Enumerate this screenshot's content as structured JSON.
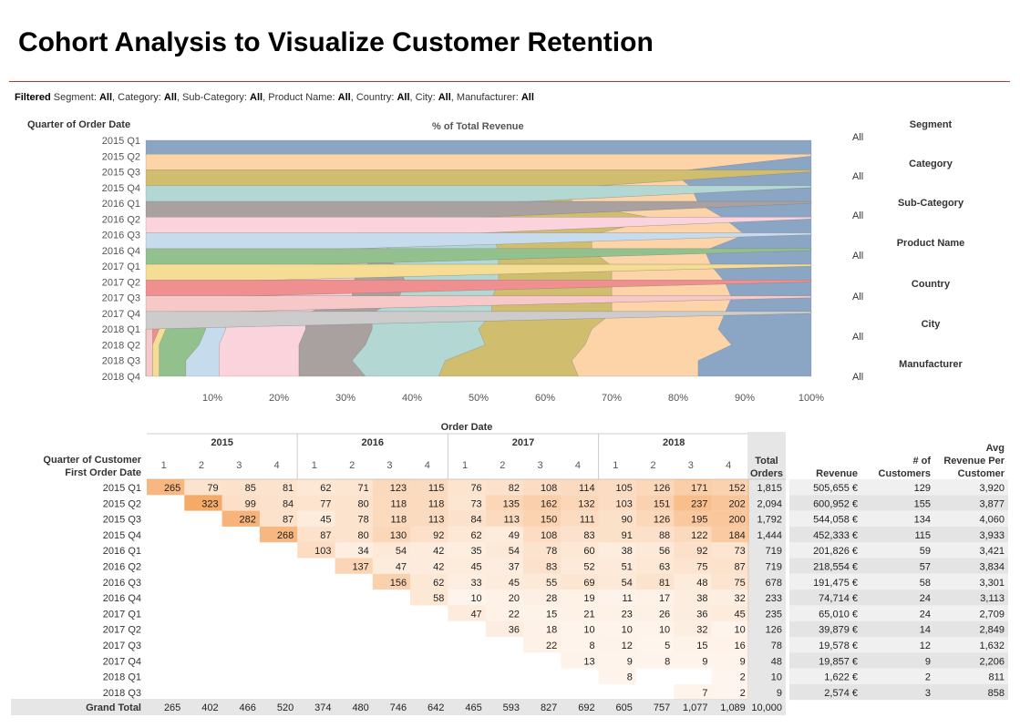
{
  "title": "Cohort Analysis to Visualize Customer Retention",
  "filters": {
    "label": "Filtered",
    "items": [
      {
        "name": "Segment:",
        "value": "All",
        "sep": ","
      },
      {
        "name": "Category:",
        "value": "All",
        "sep": ","
      },
      {
        "name": "Sub-Category:",
        "value": "All",
        "sep": ","
      },
      {
        "name": "Product Name:",
        "value": "All",
        "sep": ","
      },
      {
        "name": "Country:",
        "value": "All",
        "sep": ","
      },
      {
        "name": "City:",
        "value": "All",
        "sep": ","
      },
      {
        "name": "Manufacturer:",
        "value": "All",
        "sep": ""
      }
    ]
  },
  "side_filters": [
    {
      "label": "Segment",
      "value": "All"
    },
    {
      "label": "Category",
      "value": "All"
    },
    {
      "label": "Sub-Category",
      "value": "All"
    },
    {
      "label": "Product Name",
      "value": "All"
    },
    {
      "label": "Country",
      "value": "All"
    },
    {
      "label": "City",
      "value": "All"
    },
    {
      "label": "Manufacturer",
      "value": "All"
    }
  ],
  "colors": {
    "title_rule": "#c9302c",
    "cohorts": [
      "#8ba6c4",
      "#fdd4a8",
      "#d1bd6e",
      "#b3d7d3",
      "#a9a0a0",
      "#fbd3dd",
      "#c6dcec",
      "#93c18e",
      "#f6dd94",
      "#f08f8f",
      "#f7c8c8",
      "#cccccc"
    ],
    "heat": "#f6a560",
    "total_col": "#e6e6e6"
  },
  "chart_data": [
    {
      "type": "area",
      "title": "% of Total Revenue",
      "ylabel": "Quarter of Order Date",
      "y_categories": [
        "2015 Q1",
        "2015 Q2",
        "2015 Q3",
        "2015 Q4",
        "2016 Q1",
        "2016 Q2",
        "2016 Q3",
        "2016 Q4",
        "2017 Q1",
        "2017 Q2",
        "2017 Q3",
        "2017 Q4",
        "2018 Q1",
        "2018 Q2",
        "2018 Q3",
        "2018 Q4"
      ],
      "x_ticks": [
        "10%",
        "20%",
        "30%",
        "40%",
        "50%",
        "60%",
        "70%",
        "80%",
        "90%",
        "100%"
      ],
      "xlim": [
        0,
        100
      ],
      "boundaries_pct": [
        [
          100,
          100,
          100,
          100,
          100,
          100,
          100,
          100,
          100,
          100,
          100,
          100,
          100,
          100,
          100,
          100
        ],
        [
          100,
          100,
          79,
          82,
          83,
          87,
          90,
          84,
          85,
          87,
          88,
          87,
          86,
          88,
          83,
          83
        ],
        [
          100,
          100,
          100,
          64,
          64,
          77,
          67,
          67,
          70,
          70,
          70,
          70,
          67,
          66,
          64,
          65
        ],
        [
          100,
          100,
          100,
          100,
          52,
          44,
          52,
          53,
          53,
          53,
          52,
          52,
          50,
          51,
          45,
          44
        ],
        [
          100,
          100,
          100,
          100,
          100,
          44,
          31,
          33,
          38,
          39,
          38,
          34,
          34,
          33,
          31,
          33
        ],
        [
          100,
          100,
          100,
          100,
          100,
          100,
          44,
          35,
          33,
          31,
          31,
          24,
          24,
          23,
          23,
          23
        ],
        [
          100,
          100,
          100,
          100,
          100,
          100,
          100,
          22,
          19,
          17,
          18,
          12,
          12,
          11,
          11,
          11
        ],
        [
          100,
          100,
          100,
          100,
          100,
          100,
          100,
          100,
          18,
          14,
          11,
          9,
          9,
          8,
          6,
          6
        ],
        [
          100,
          100,
          100,
          100,
          100,
          100,
          100,
          100,
          100,
          8,
          7,
          6,
          3,
          2,
          2,
          2
        ],
        [
          100,
          100,
          100,
          100,
          100,
          100,
          100,
          100,
          100,
          100,
          5,
          4,
          2,
          1,
          1,
          1
        ],
        [
          100,
          100,
          100,
          100,
          100,
          100,
          100,
          100,
          100,
          100,
          100,
          2,
          1,
          1,
          1,
          1
        ],
        [
          100,
          100,
          100,
          100,
          100,
          100,
          100,
          100,
          100,
          100,
          100,
          100,
          0,
          0,
          0,
          0
        ]
      ]
    },
    {
      "type": "table",
      "title": "Order Date",
      "row_header": "Quarter of Customer First Order Date",
      "years": [
        "2015",
        "2016",
        "2017",
        "2018"
      ],
      "quarters": [
        "1",
        "2",
        "3",
        "4",
        "1",
        "2",
        "3",
        "4",
        "1",
        "2",
        "3",
        "4",
        "1",
        "2",
        "3",
        "4"
      ],
      "extra_headers": {
        "total": "Total Orders",
        "revenue": "Revenue",
        "customers": "# of Customers",
        "avg": "Avg Revenue Per Customer"
      },
      "rows": [
        {
          "label": "2015 Q1",
          "cells": [
            265,
            79,
            85,
            81,
            62,
            71,
            123,
            115,
            76,
            82,
            108,
            114,
            105,
            126,
            171,
            152
          ],
          "total": "1,815",
          "revenue": "505,655 €",
          "customers": "129",
          "avg": "3,920"
        },
        {
          "label": "2015 Q2",
          "cells": [
            null,
            323,
            99,
            84,
            77,
            80,
            118,
            118,
            73,
            135,
            162,
            132,
            103,
            151,
            237,
            202
          ],
          "total": "2,094",
          "revenue": "600,952 €",
          "customers": "155",
          "avg": "3,877"
        },
        {
          "label": "2015 Q3",
          "cells": [
            null,
            null,
            282,
            87,
            45,
            78,
            118,
            113,
            84,
            113,
            150,
            111,
            90,
            126,
            195,
            200
          ],
          "total": "1,792",
          "revenue": "544,058 €",
          "customers": "134",
          "avg": "4,060"
        },
        {
          "label": "2015 Q4",
          "cells": [
            null,
            null,
            null,
            268,
            87,
            80,
            130,
            92,
            62,
            49,
            108,
            83,
            91,
            88,
            122,
            184
          ],
          "total": "1,444",
          "revenue": "452,333 €",
          "customers": "115",
          "avg": "3,933"
        },
        {
          "label": "2016 Q1",
          "cells": [
            null,
            null,
            null,
            null,
            103,
            34,
            54,
            42,
            35,
            54,
            78,
            60,
            38,
            56,
            92,
            73
          ],
          "total": "719",
          "revenue": "201,826 €",
          "customers": "59",
          "avg": "3,421"
        },
        {
          "label": "2016 Q2",
          "cells": [
            null,
            null,
            null,
            null,
            null,
            137,
            47,
            42,
            45,
            37,
            83,
            52,
            51,
            63,
            75,
            87
          ],
          "total": "719",
          "revenue": "218,554 €",
          "customers": "57",
          "avg": "3,834"
        },
        {
          "label": "2016 Q3",
          "cells": [
            null,
            null,
            null,
            null,
            null,
            null,
            156,
            62,
            33,
            45,
            55,
            69,
            54,
            81,
            48,
            75
          ],
          "total": "678",
          "revenue": "191,475 €",
          "customers": "58",
          "avg": "3,301"
        },
        {
          "label": "2016 Q4",
          "cells": [
            null,
            null,
            null,
            null,
            null,
            null,
            null,
            58,
            10,
            20,
            28,
            19,
            11,
            17,
            38,
            32
          ],
          "total": "233",
          "revenue": "74,714 €",
          "customers": "24",
          "avg": "3,113"
        },
        {
          "label": "2017 Q1",
          "cells": [
            null,
            null,
            null,
            null,
            null,
            null,
            null,
            null,
            47,
            22,
            15,
            21,
            23,
            26,
            36,
            45
          ],
          "total": "235",
          "revenue": "65,010 €",
          "customers": "24",
          "avg": "2,709"
        },
        {
          "label": "2017 Q2",
          "cells": [
            null,
            null,
            null,
            null,
            null,
            null,
            null,
            null,
            null,
            36,
            18,
            10,
            10,
            10,
            32,
            10
          ],
          "total": "126",
          "revenue": "39,879 €",
          "customers": "14",
          "avg": "2,849"
        },
        {
          "label": "2017 Q3",
          "cells": [
            null,
            null,
            null,
            null,
            null,
            null,
            null,
            null,
            null,
            null,
            22,
            8,
            12,
            5,
            15,
            16
          ],
          "total": "78",
          "revenue": "19,578 €",
          "customers": "12",
          "avg": "1,632"
        },
        {
          "label": "2017 Q4",
          "cells": [
            null,
            null,
            null,
            null,
            null,
            null,
            null,
            null,
            null,
            null,
            null,
            13,
            9,
            8,
            9,
            9
          ],
          "total": "48",
          "revenue": "19,857 €",
          "customers": "9",
          "avg": "2,206"
        },
        {
          "label": "2018 Q1",
          "cells": [
            null,
            null,
            null,
            null,
            null,
            null,
            null,
            null,
            null,
            null,
            null,
            null,
            8,
            null,
            null,
            2
          ],
          "total": "10",
          "revenue": "1,622 €",
          "customers": "2",
          "avg": "811"
        },
        {
          "label": "2018 Q3",
          "cells": [
            null,
            null,
            null,
            null,
            null,
            null,
            null,
            null,
            null,
            null,
            null,
            null,
            null,
            null,
            7,
            2
          ],
          "total": "9",
          "revenue": "2,574 €",
          "customers": "3",
          "avg": "858"
        }
      ],
      "grand_total": {
        "label": "Grand Total",
        "cells": [
          "265",
          "402",
          "466",
          "520",
          "374",
          "480",
          "746",
          "642",
          "465",
          "593",
          "827",
          "692",
          "605",
          "757",
          "1,077",
          "1,089"
        ],
        "total": "10,000"
      }
    }
  ]
}
